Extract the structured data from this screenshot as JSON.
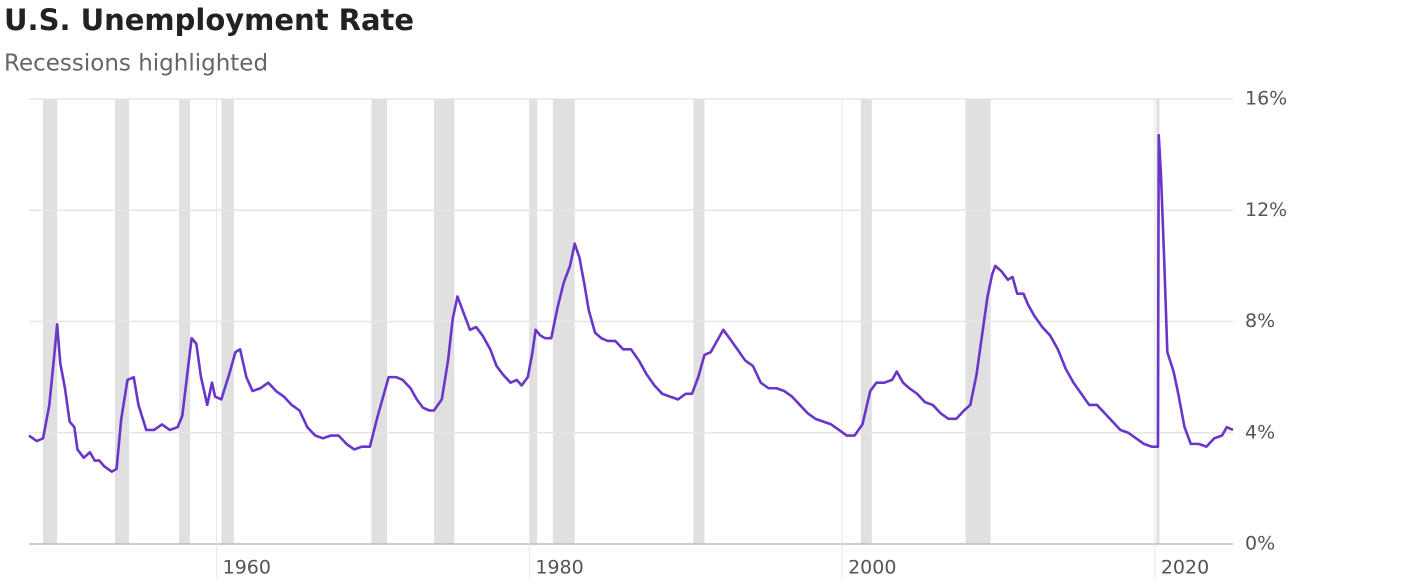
{
  "chart_data": {
    "type": "line",
    "title": "U.S. Unemployment Rate",
    "subtitle": "Recessions highlighted",
    "color": "#6a35c9",
    "band_color": "#e0e0e0",
    "grid": true,
    "xlim": [
      1948,
      2025
    ],
    "xticks": [
      1960,
      1980,
      2000,
      2020
    ],
    "ylim": [
      0,
      16
    ],
    "yticks": [
      {
        "value": 0,
        "label": "0%"
      },
      {
        "value": 4,
        "label": "4%"
      },
      {
        "value": 8,
        "label": "8%"
      },
      {
        "value": 12,
        "label": "12%"
      },
      {
        "value": 16,
        "label": "16%"
      }
    ],
    "recessions": [
      [
        1948.9,
        1949.8
      ],
      [
        1953.5,
        1954.4
      ],
      [
        1957.6,
        1958.3
      ],
      [
        1960.3,
        1961.1
      ],
      [
        1969.9,
        1970.9
      ],
      [
        1973.9,
        1975.2
      ],
      [
        1980.0,
        1980.5
      ],
      [
        1981.5,
        1982.9
      ],
      [
        1990.5,
        1991.2
      ],
      [
        2001.2,
        2001.9
      ],
      [
        2007.9,
        2009.5
      ],
      [
        2020.1,
        2020.3
      ]
    ],
    "x": [
      1948.0,
      1948.5,
      1948.9,
      1949.3,
      1949.6,
      1949.8,
      1950.0,
      1950.3,
      1950.6,
      1950.9,
      1951.1,
      1951.5,
      1951.9,
      1952.2,
      1952.5,
      1952.8,
      1953.3,
      1953.6,
      1953.9,
      1954.3,
      1954.7,
      1955.0,
      1955.5,
      1956.0,
      1956.5,
      1957.0,
      1957.5,
      1957.8,
      1958.1,
      1958.4,
      1958.7,
      1959.0,
      1959.4,
      1959.7,
      1959.9,
      1960.3,
      1960.8,
      1961.2,
      1961.5,
      1961.9,
      1962.3,
      1962.8,
      1963.3,
      1963.8,
      1964.3,
      1964.8,
      1965.3,
      1965.8,
      1966.3,
      1966.8,
      1967.3,
      1967.8,
      1968.3,
      1968.8,
      1969.3,
      1969.8,
      1970.3,
      1970.7,
      1971.0,
      1971.5,
      1971.9,
      1972.4,
      1972.8,
      1973.2,
      1973.6,
      1973.9,
      1974.4,
      1974.8,
      1975.1,
      1975.4,
      1975.8,
      1976.2,
      1976.6,
      1977.0,
      1977.5,
      1977.9,
      1978.3,
      1978.8,
      1979.2,
      1979.5,
      1979.9,
      1980.2,
      1980.4,
      1980.7,
      1981.0,
      1981.4,
      1981.8,
      1982.2,
      1982.6,
      1982.9,
      1983.2,
      1983.5,
      1983.8,
      1984.2,
      1984.6,
      1985.0,
      1985.5,
      1986.0,
      1986.5,
      1987.0,
      1987.5,
      1988.0,
      1988.5,
      1989.0,
      1989.5,
      1990.0,
      1990.4,
      1990.8,
      1991.2,
      1991.6,
      1992.0,
      1992.4,
      1992.8,
      1993.3,
      1993.8,
      1994.3,
      1994.8,
      1995.3,
      1995.8,
      1996.3,
      1996.8,
      1997.3,
      1997.8,
      1998.3,
      1998.8,
      1999.3,
      1999.8,
      2000.3,
      2000.8,
      2001.3,
      2001.8,
      2002.2,
      2002.7,
      2003.2,
      2003.5,
      2003.9,
      2004.3,
      2004.8,
      2005.3,
      2005.8,
      2006.3,
      2006.8,
      2007.3,
      2007.8,
      2008.2,
      2008.6,
      2008.9,
      2009.3,
      2009.6,
      2009.8,
      2010.2,
      2010.6,
      2010.9,
      2011.2,
      2011.6,
      2011.9,
      2012.3,
      2012.8,
      2013.3,
      2013.8,
      2014.3,
      2014.8,
      2015.3,
      2015.8,
      2016.3,
      2016.8,
      2017.3,
      2017.8,
      2018.3,
      2018.8,
      2019.3,
      2019.8,
      2020.2,
      2020.25,
      2020.4,
      2020.6,
      2020.8,
      2021.2,
      2021.5,
      2021.9,
      2022.3,
      2022.8,
      2023.3,
      2023.8,
      2024.3,
      2024.6,
      2025.0
    ],
    "values": [
      3.9,
      3.7,
      3.8,
      5.0,
      6.7,
      7.9,
      6.5,
      5.6,
      4.4,
      4.2,
      3.4,
      3.1,
      3.3,
      3.0,
      3.0,
      2.8,
      2.6,
      2.7,
      4.5,
      5.9,
      6.0,
      5.0,
      4.1,
      4.1,
      4.3,
      4.1,
      4.2,
      4.6,
      6.0,
      7.4,
      7.2,
      6.0,
      5.0,
      5.8,
      5.3,
      5.2,
      6.1,
      6.9,
      7.0,
      6.0,
      5.5,
      5.6,
      5.8,
      5.5,
      5.3,
      5.0,
      4.8,
      4.2,
      3.9,
      3.8,
      3.9,
      3.9,
      3.6,
      3.4,
      3.5,
      3.5,
      4.6,
      5.4,
      6.0,
      6.0,
      5.9,
      5.6,
      5.2,
      4.9,
      4.8,
      4.8,
      5.2,
      6.6,
      8.1,
      8.9,
      8.3,
      7.7,
      7.8,
      7.5,
      7.0,
      6.4,
      6.1,
      5.8,
      5.9,
      5.7,
      6.0,
      6.9,
      7.7,
      7.5,
      7.4,
      7.4,
      8.5,
      9.4,
      10.0,
      10.8,
      10.3,
      9.4,
      8.4,
      7.6,
      7.4,
      7.3,
      7.3,
      7.0,
      7.0,
      6.6,
      6.1,
      5.7,
      5.4,
      5.3,
      5.2,
      5.4,
      5.4,
      6.0,
      6.8,
      6.9,
      7.3,
      7.7,
      7.4,
      7.0,
      6.6,
      6.4,
      5.8,
      5.6,
      5.6,
      5.5,
      5.3,
      5.0,
      4.7,
      4.5,
      4.4,
      4.3,
      4.1,
      3.9,
      3.9,
      4.3,
      5.5,
      5.8,
      5.8,
      5.9,
      6.2,
      5.8,
      5.6,
      5.4,
      5.1,
      5.0,
      4.7,
      4.5,
      4.5,
      4.8,
      5.0,
      6.1,
      7.3,
      8.9,
      9.7,
      10.0,
      9.8,
      9.5,
      9.6,
      9.0,
      9.0,
      8.6,
      8.2,
      7.8,
      7.5,
      7.0,
      6.3,
      5.8,
      5.4,
      5.0,
      5.0,
      4.7,
      4.4,
      4.1,
      4.0,
      3.8,
      3.6,
      3.5,
      3.5,
      14.7,
      13.2,
      10.2,
      6.9,
      6.2,
      5.4,
      4.2,
      3.6,
      3.6,
      3.5,
      3.8,
      3.9,
      4.2,
      4.1
    ]
  }
}
